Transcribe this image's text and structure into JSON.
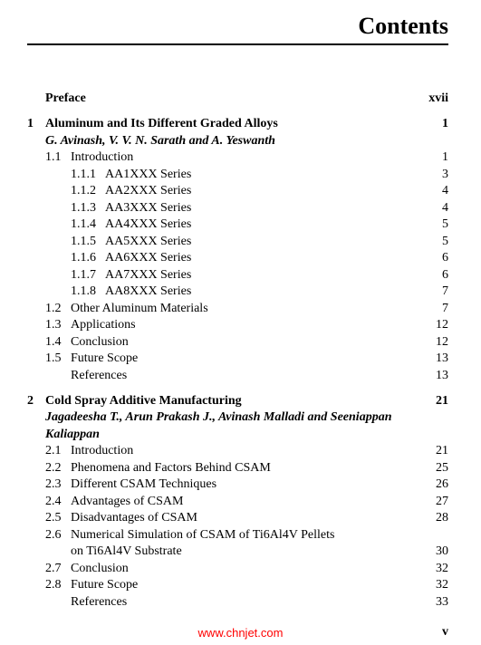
{
  "title": "Contents",
  "preface": {
    "label": "Preface",
    "page": "xvii"
  },
  "chapters": [
    {
      "num": "1",
      "title": "Aluminum and Its Different Graded Alloys",
      "page": "1",
      "authors": "G. Avinash, V. V. N. Sarath and A. Yeswanth",
      "sections": [
        {
          "num": "1.1",
          "title": "Introduction",
          "page": "1",
          "subsections": [
            {
              "num": "1.1.1",
              "title": "AA1XXX Series",
              "page": "3"
            },
            {
              "num": "1.1.2",
              "title": "AA2XXX Series",
              "page": "4"
            },
            {
              "num": "1.1.3",
              "title": "AA3XXX Series",
              "page": "4"
            },
            {
              "num": "1.1.4",
              "title": "AA4XXX Series",
              "page": "5"
            },
            {
              "num": "1.1.5",
              "title": "AA5XXX Series",
              "page": "5"
            },
            {
              "num": "1.1.6",
              "title": "AA6XXX Series",
              "page": "6"
            },
            {
              "num": "1.1.7",
              "title": "AA7XXX Series",
              "page": "6"
            },
            {
              "num": "1.1.8",
              "title": "AA8XXX Series",
              "page": "7"
            }
          ]
        },
        {
          "num": "1.2",
          "title": "Other Aluminum Materials",
          "page": "7"
        },
        {
          "num": "1.3",
          "title": "Applications",
          "page": "12"
        },
        {
          "num": "1.4",
          "title": "Conclusion",
          "page": "12"
        },
        {
          "num": "1.5",
          "title": "Future Scope",
          "page": "13"
        },
        {
          "num": "",
          "title": "References",
          "page": "13"
        }
      ]
    },
    {
      "num": "2",
      "title": "Cold Spray Additive Manufacturing",
      "page": "21",
      "authors": "Jagadeesha T., Arun Prakash J., Avinash Malladi and Seeniappan Kaliappan",
      "sections": [
        {
          "num": "2.1",
          "title": "Introduction",
          "page": "21"
        },
        {
          "num": "2.2",
          "title": "Phenomena and Factors Behind CSAM",
          "page": "25"
        },
        {
          "num": "2.3",
          "title": "Different CSAM Techniques",
          "page": "26"
        },
        {
          "num": "2.4",
          "title": "Advantages of CSAM",
          "page": "27"
        },
        {
          "num": "2.5",
          "title": "Disadvantages of CSAM",
          "page": "28"
        },
        {
          "num": "2.6",
          "title": "Numerical Simulation of CSAM of Ti6Al4V Pellets on Ti6Al4V Substrate",
          "page": "30",
          "wrap": true
        },
        {
          "num": "2.7",
          "title": "Conclusion",
          "page": "32"
        },
        {
          "num": "2.8",
          "title": "Future Scope",
          "page": "32"
        },
        {
          "num": "",
          "title": "References",
          "page": "33"
        }
      ]
    }
  ],
  "watermark": "www.chnjet.com",
  "pagefoot": "v"
}
